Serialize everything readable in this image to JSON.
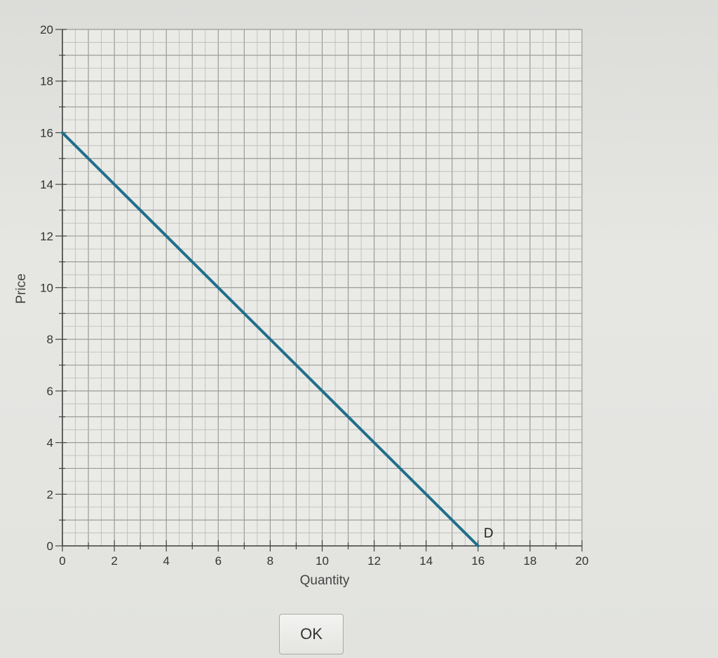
{
  "chart_data": {
    "type": "line",
    "title": "",
    "xlabel": "Quantity",
    "ylabel": "Price",
    "xlim": [
      0,
      20
    ],
    "ylim": [
      0,
      20
    ],
    "x_ticks": [
      0,
      2,
      4,
      6,
      8,
      10,
      12,
      14,
      16,
      18,
      20
    ],
    "y_ticks": [
      0,
      2,
      4,
      6,
      8,
      10,
      12,
      14,
      16,
      18,
      20
    ],
    "grid": true,
    "minor_grid_step": 1,
    "series": [
      {
        "name": "D",
        "x": [
          0,
          16
        ],
        "y": [
          16,
          0
        ],
        "color": "#1f6f8b"
      }
    ]
  },
  "dialog": {
    "ok_label": "OK"
  }
}
